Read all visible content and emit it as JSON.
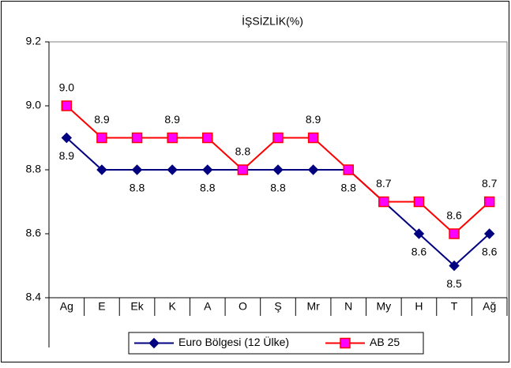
{
  "chart_data": {
    "type": "line",
    "title": "İŞSİZLİK(%)",
    "categories": [
      "Ag",
      "E",
      "Ek",
      "K",
      "A",
      "O",
      "Ş",
      "Mr",
      "N",
      "My",
      "H",
      "T",
      "Ağ"
    ],
    "ylim": [
      8.4,
      9.2
    ],
    "yticks": [
      8.4,
      8.6,
      8.8,
      {
        "value": 9,
        "label": "9.0"
      },
      9.2
    ],
    "grid": false,
    "legend": "bottom",
    "series": [
      {
        "name": "Euro Bölgesi (12 Ülke)",
        "color": "#000080",
        "marker": "diamond",
        "values": [
          8.9,
          8.8,
          8.8,
          8.8,
          8.8,
          8.8,
          8.8,
          8.8,
          8.8,
          8.7,
          8.6,
          8.5,
          8.6
        ],
        "value_labels": [
          "8.9",
          null,
          "8.8",
          null,
          "8.8",
          null,
          "8.8",
          null,
          "8.8",
          null,
          "8.6",
          "8.5",
          "8.6"
        ]
      },
      {
        "name": "AB 25",
        "color": "#ff0000",
        "marker_fill": "#ff00ff",
        "marker": "square",
        "values": [
          9,
          8.9,
          8.9,
          8.9,
          8.9,
          8.8,
          8.9,
          8.9,
          8.8,
          8.7,
          8.7,
          8.6,
          8.7
        ],
        "value_labels": [
          "9.0",
          "8.9",
          null,
          "8.9",
          null,
          "8.8",
          null,
          "8.9",
          null,
          "8.7",
          null,
          "8.6",
          "8.7"
        ]
      }
    ]
  }
}
